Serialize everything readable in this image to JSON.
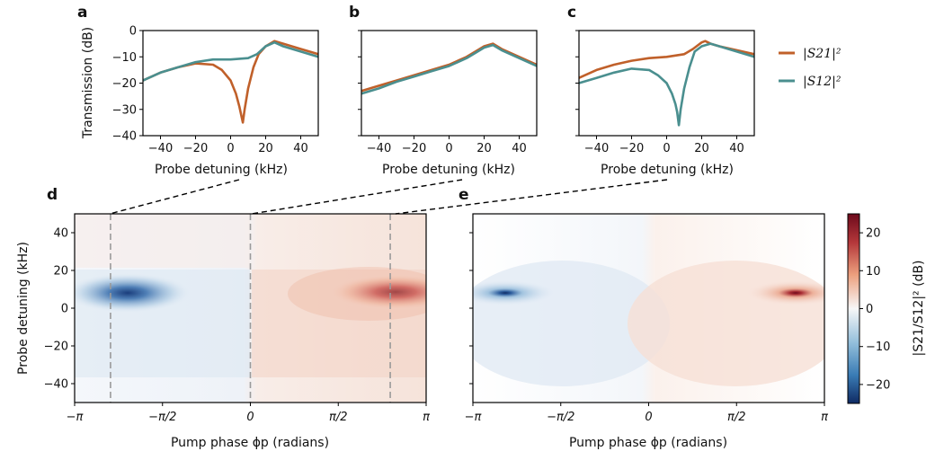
{
  "chart_data": [
    {
      "panel": "a",
      "type": "line",
      "xlabel": "Probe detuning (kHz)",
      "ylabel": "Transmission (dB)",
      "xlim": [
        -50,
        50
      ],
      "ylim": [
        -40,
        0
      ],
      "xticks": [
        "-40",
        "-20",
        "0",
        "20",
        "40"
      ],
      "yticks": [
        "0",
        "-10",
        "-20",
        "-30",
        "-40"
      ],
      "series": [
        {
          "name": "|S21|²",
          "color": "#c0602a",
          "x": [
            -50,
            -40,
            -30,
            -20,
            -10,
            -5,
            0,
            3,
            5,
            6,
            7,
            8,
            10,
            13,
            16,
            20,
            25,
            30,
            40,
            50
          ],
          "y": [
            -19,
            -16,
            -14,
            -12.5,
            -13,
            -15,
            -19,
            -24,
            -29,
            -32,
            -35,
            -30,
            -22,
            -14,
            -9,
            -6,
            -4,
            -5,
            -7,
            -9
          ]
        },
        {
          "name": "|S12|²",
          "color": "#4a8f8f",
          "x": [
            -50,
            -40,
            -30,
            -20,
            -10,
            0,
            10,
            15,
            20,
            25,
            30,
            40,
            50
          ],
          "y": [
            -19,
            -16,
            -14,
            -12,
            -11,
            -11,
            -10.5,
            -9,
            -6,
            -4.5,
            -6,
            -8,
            -10
          ]
        }
      ]
    },
    {
      "panel": "b",
      "type": "line",
      "xlabel": "Probe detuning (kHz)",
      "xlim": [
        -50,
        50
      ],
      "ylim": [
        -40,
        0
      ],
      "xticks": [
        "-40",
        "-20",
        "0",
        "20",
        "40"
      ],
      "series": [
        {
          "name": "|S21|²",
          "color": "#c0602a",
          "x": [
            -50,
            -40,
            -30,
            -20,
            -10,
            0,
            10,
            15,
            20,
            25,
            30,
            40,
            50
          ],
          "y": [
            -23,
            -21,
            -19,
            -17,
            -15,
            -13,
            -10,
            -8,
            -6,
            -5,
            -7,
            -10,
            -13
          ]
        },
        {
          "name": "|S12|²",
          "color": "#4a8f8f",
          "x": [
            -50,
            -40,
            -30,
            -20,
            -10,
            0,
            10,
            15,
            20,
            25,
            30,
            40,
            50
          ],
          "y": [
            -24,
            -22,
            -19.5,
            -17.5,
            -15.5,
            -13.5,
            -10.5,
            -8.5,
            -6.5,
            -5.5,
            -7.5,
            -10.5,
            -13.5
          ]
        }
      ]
    },
    {
      "panel": "c",
      "type": "line",
      "xlabel": "Probe detuning (kHz)",
      "xlim": [
        -50,
        50
      ],
      "ylim": [
        -40,
        0
      ],
      "xticks": [
        "-40",
        "-20",
        "0",
        "20",
        "40"
      ],
      "series": [
        {
          "name": "|S21|²",
          "color": "#c0602a",
          "x": [
            -50,
            -40,
            -30,
            -20,
            -10,
            0,
            10,
            15,
            20,
            22,
            25,
            30,
            40,
            50
          ],
          "y": [
            -18,
            -15,
            -13,
            -11.5,
            -10.5,
            -10,
            -9,
            -7,
            -4.5,
            -4,
            -5,
            -6,
            -7.5,
            -9
          ]
        },
        {
          "name": "|S12|²",
          "color": "#4a8f8f",
          "x": [
            -50,
            -40,
            -30,
            -20,
            -10,
            -5,
            0,
            3,
            5,
            6,
            7,
            8,
            10,
            13,
            16,
            20,
            25,
            30,
            40,
            50
          ],
          "y": [
            -20,
            -18,
            -16,
            -14.5,
            -15,
            -17,
            -20,
            -24,
            -28,
            -31,
            -36,
            -30,
            -22,
            -14,
            -8,
            -6,
            -5,
            -6,
            -8,
            -10
          ]
        }
      ]
    },
    {
      "panel": "d",
      "type": "heatmap",
      "xlabel": "Pump phase ϕp (radians)",
      "ylabel": "Probe detuning (kHz)",
      "xlim": [
        -3.1416,
        3.1416
      ],
      "ylim": [
        -50,
        50
      ],
      "xticks": [
        "−π",
        "−π/2",
        "0",
        "π/2",
        "π"
      ],
      "yticks": [
        "40",
        "20",
        "0",
        "−20",
        "−40"
      ],
      "dashed_lines_x": [
        -2.5,
        0,
        2.5
      ],
      "hotspots": [
        {
          "x": -2.45,
          "y": 8,
          "value": -20
        },
        {
          "x": 2.75,
          "y": 8,
          "value": 22
        }
      ]
    },
    {
      "panel": "e",
      "type": "heatmap",
      "xlabel": "Pump phase ϕp (radians)",
      "xlim": [
        -3.1416,
        3.1416
      ],
      "ylim": [
        -50,
        50
      ],
      "xticks": [
        "−π",
        "−π/2",
        "0",
        "π/2",
        "π"
      ],
      "colorbar": {
        "label": "|S21/S12|² (dB)",
        "range": [
          -25,
          25
        ],
        "ticks": [
          "20",
          "10",
          "0",
          "−10",
          "−20"
        ]
      },
      "hotspots": [
        {
          "x": -2.7,
          "y": 8,
          "value": -24
        },
        {
          "x": 2.7,
          "y": 8,
          "value": 24
        }
      ]
    }
  ],
  "labels": {
    "panel_a": "a",
    "panel_b": "b",
    "panel_c": "c",
    "panel_d": "d",
    "panel_e": "e",
    "legend_s21": "|S21|²",
    "legend_s12": "|S12|²",
    "xlabel_top": "Probe detuning (kHz)",
    "ylabel_top": "Transmission (dB)",
    "xlabel_bottom": "Pump phase ϕp (radians)",
    "ylabel_bottom": "Probe detuning (kHz)",
    "colorbar_label": "|S21/S12|² (dB)"
  },
  "colors": {
    "s21": "#c0602a",
    "s12": "#4a8f8f",
    "cmap_neg": "#1f3f7a",
    "cmap_pos": "#7a0f1c"
  }
}
